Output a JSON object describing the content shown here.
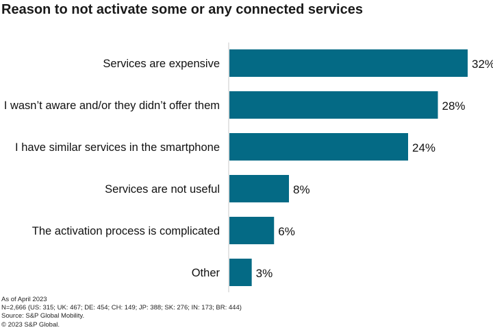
{
  "chart_data": {
    "type": "bar",
    "orientation": "horizontal",
    "title": "Reason to not activate some or any connected services",
    "categories": [
      "Services are expensive",
      "I wasn’t aware and/or they didn’t offer them",
      "I have similar services in the smartphone",
      "Services are not useful",
      "The activation process is complicated",
      "Other"
    ],
    "values": [
      32,
      28,
      24,
      8,
      6,
      3
    ],
    "value_labels": [
      "32%",
      "28%",
      "24%",
      "8%",
      "6%",
      "3%"
    ],
    "xlim": [
      0,
      32
    ],
    "bar_color": "#046a85",
    "axis_color": "#c8c8c8",
    "grid": false,
    "legend": "none"
  },
  "footer": {
    "lines": [
      "As of April 2023",
      "N=2,666 (US: 315; UK: 467; DE: 454; CH: 149; JP: 388; SK: 276; IN: 173; BR: 444)",
      "Source: S&P Global Mobility.",
      "© 2023 S&P Global."
    ]
  }
}
